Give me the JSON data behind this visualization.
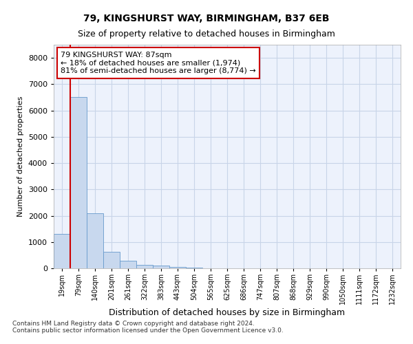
{
  "title_line1": "79, KINGSHURST WAY, BIRMINGHAM, B37 6EB",
  "title_line2": "Size of property relative to detached houses in Birmingham",
  "xlabel": "Distribution of detached houses by size in Birmingham",
  "ylabel": "Number of detached properties",
  "annotation_title": "79 KINGSHURST WAY: 87sqm",
  "annotation_line2": "← 18% of detached houses are smaller (1,974)",
  "annotation_line3": "81% of semi-detached houses are larger (8,774) →",
  "footnote1": "Contains HM Land Registry data © Crown copyright and database right 2024.",
  "footnote2": "Contains public sector information licensed under the Open Government Licence v3.0.",
  "bar_color": "#c8d8ee",
  "bar_edge_color": "#6699cc",
  "property_line_color": "#cc0000",
  "categories": [
    "19sqm",
    "79sqm",
    "140sqm",
    "201sqm",
    "261sqm",
    "322sqm",
    "383sqm",
    "443sqm",
    "504sqm",
    "565sqm",
    "625sqm",
    "686sqm",
    "747sqm",
    "807sqm",
    "868sqm",
    "929sqm",
    "990sqm",
    "1050sqm",
    "1111sqm",
    "1172sqm",
    "1232sqm"
  ],
  "values": [
    1300,
    6500,
    2080,
    630,
    280,
    130,
    100,
    60,
    20,
    0,
    0,
    0,
    0,
    0,
    0,
    0,
    0,
    0,
    0,
    0,
    0
  ],
  "property_line_x": 1,
  "ylim": [
    0,
    8500
  ],
  "yticks": [
    0,
    1000,
    2000,
    3000,
    4000,
    5000,
    6000,
    7000,
    8000
  ],
  "grid_color": "#c8d4e8",
  "background_color": "#edf2fc",
  "title_fontsize": 10,
  "subtitle_fontsize": 9,
  "ylabel_fontsize": 8,
  "xlabel_fontsize": 9,
  "tick_fontsize": 7,
  "annotation_fontsize": 8,
  "footnote_fontsize": 6.5
}
